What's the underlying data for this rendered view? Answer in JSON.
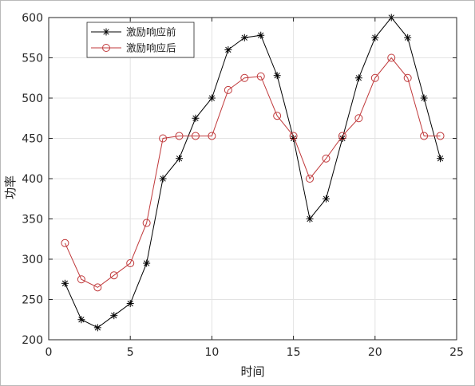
{
  "chart_data": {
    "type": "line",
    "title": "",
    "xlabel": "时间",
    "ylabel": "功率",
    "xlim": [
      0,
      25
    ],
    "ylim": [
      200,
      600
    ],
    "xticks": [
      0,
      5,
      10,
      15,
      20,
      25
    ],
    "yticks": [
      200,
      250,
      300,
      350,
      400,
      450,
      500,
      550,
      600
    ],
    "grid": true,
    "legend_position": "top-left",
    "x": [
      1,
      2,
      3,
      4,
      5,
      6,
      7,
      8,
      9,
      10,
      11,
      12,
      13,
      14,
      15,
      16,
      17,
      18,
      19,
      20,
      21,
      22,
      23,
      24
    ],
    "series": [
      {
        "name": "激励响应前",
        "color": "#000000",
        "marker": "asterisk",
        "values": [
          270,
          225,
          215,
          230,
          245,
          295,
          400,
          425,
          475,
          500,
          560,
          575,
          578,
          528,
          450,
          350,
          375,
          450,
          525,
          575,
          600,
          575,
          500,
          425
        ]
      },
      {
        "name": "激励响应后",
        "color": "#c0393b",
        "marker": "circle",
        "values": [
          320,
          275,
          265,
          280,
          295,
          345,
          450,
          453,
          453,
          453,
          510,
          525,
          527,
          478,
          453,
          400,
          425,
          453,
          475,
          525,
          550,
          525,
          453,
          453
        ]
      }
    ]
  }
}
